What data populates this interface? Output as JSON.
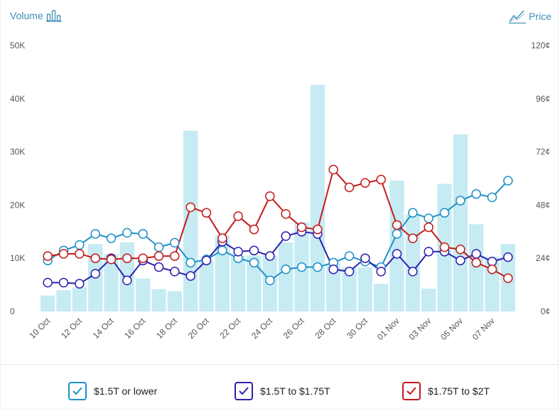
{
  "header": {
    "left_label": "Volume",
    "left_icon": "bar-chart-icon",
    "right_label": "Price",
    "right_icon": "line-chart-icon"
  },
  "colors": {
    "bars": "#c6ebf3",
    "series_1": "#1f90c7",
    "series_2": "#2d1fb0",
    "series_3": "#c41b1b",
    "axis_text": "#555555",
    "header_text": "#3a8fb8"
  },
  "chart_data": {
    "type": "bar+line",
    "categories": [
      "10 Oct",
      "11 Oct",
      "12 Oct",
      "13 Oct",
      "14 Oct",
      "15 Oct",
      "16 Oct",
      "17 Oct",
      "18 Oct",
      "19 Oct",
      "20 Oct",
      "21 Oct",
      "22 Oct",
      "23 Oct",
      "24 Oct",
      "25 Oct",
      "26 Oct",
      "27 Oct",
      "28 Oct",
      "29 Oct",
      "30 Oct",
      "31 Oct",
      "01 Nov",
      "02 Nov",
      "03 Nov",
      "04 Nov",
      "05 Nov",
      "06 Nov",
      "07 Nov",
      "08 Nov"
    ],
    "x_tick_labels": [
      "10 Oct",
      "12 Oct",
      "14 Oct",
      "16 Oct",
      "18 Oct",
      "20 Oct",
      "22 Oct",
      "24 Oct",
      "26 Oct",
      "28 Oct",
      "30 Oct",
      "01 Nov",
      "03 Nov",
      "05 Nov",
      "07 Nov"
    ],
    "volume": {
      "axis": "left",
      "ylim": [
        0,
        50000
      ],
      "ticks": [
        "0",
        "10K",
        "20K",
        "30K",
        "40K",
        "50K"
      ],
      "values": [
        3000,
        4000,
        4500,
        12700,
        10800,
        13000,
        6200,
        4200,
        3800,
        34000,
        9500,
        14300,
        10500,
        10500,
        10500,
        13000,
        16800,
        42600,
        9000,
        8300,
        8300,
        5200,
        24600,
        18200,
        4300,
        24000,
        33300,
        16400,
        10300,
        12700
      ]
    },
    "price": {
      "axis": "right",
      "ylim": [
        0,
        120
      ],
      "ticks": [
        "0¢",
        "24¢",
        "48¢",
        "72¢",
        "96¢",
        "120¢"
      ]
    },
    "series": [
      {
        "name": "$1.5T or lower",
        "values": [
          23,
          27.5,
          30,
          35,
          33,
          35.5,
          35,
          29,
          31,
          22,
          23.5,
          27.5,
          24,
          22,
          14,
          19,
          20,
          20,
          22,
          25,
          22.5,
          20,
          35,
          44.5,
          42,
          44.5,
          50,
          53,
          51.5,
          59
        ]
      },
      {
        "name": "$1.5T to $1.75T",
        "values": [
          13,
          13,
          12.5,
          17,
          24,
          14,
          23,
          20,
          18,
          16,
          23,
          31.5,
          27,
          27.5,
          25,
          34,
          36,
          35,
          19,
          18,
          24,
          18,
          26,
          18,
          27,
          27,
          23,
          26,
          22.5,
          24.5
        ]
      },
      {
        "name": "$1.75T to $2T",
        "values": [
          25,
          26,
          26,
          24,
          23.5,
          24,
          24,
          25,
          25,
          47,
          44.5,
          33,
          43,
          37,
          52,
          44,
          38,
          37,
          64,
          56,
          58,
          59.5,
          39,
          33,
          38,
          29,
          28,
          22,
          19,
          15
        ]
      }
    ]
  },
  "legend": [
    {
      "label": "$1.5T or lower"
    },
    {
      "label": "$1.5T to $1.75T"
    },
    {
      "label": "$1.75T to $2T"
    }
  ]
}
